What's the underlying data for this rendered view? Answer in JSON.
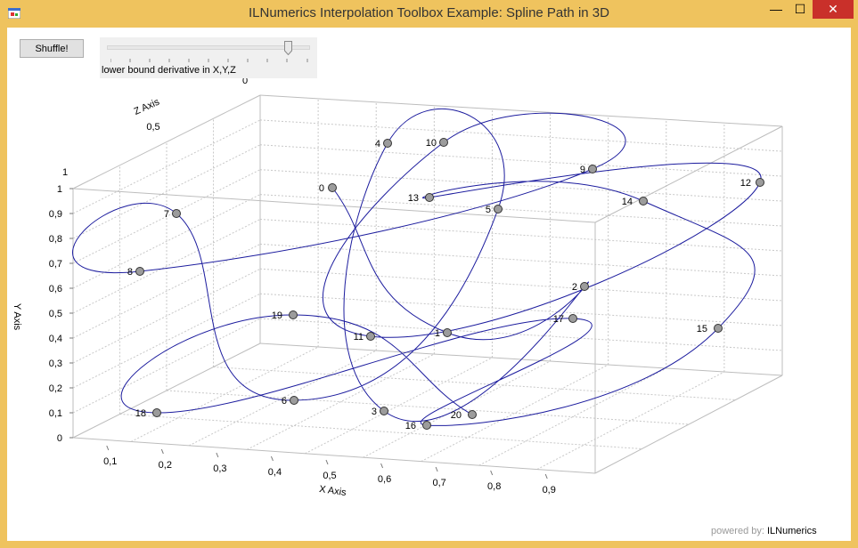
{
  "window": {
    "title": "ILNumerics Interpolation Toolbox Example: Spline Path in 3D",
    "minimize_glyph": "—",
    "maximize_glyph": "☐",
    "close_glyph": "✕"
  },
  "toolbar": {
    "shuffle_label": "Shuffle!",
    "slider_label": "lower bound derivative in X,Y,Z",
    "slider_value": 0.9
  },
  "footer": {
    "prefix": "powered by:",
    "brand": "ILNumerics"
  },
  "colors": {
    "curve": "#1c1c9e",
    "point": "#9c9c9c",
    "close": "#c9302a",
    "frame": "#efc35e"
  },
  "chart_data": {
    "type": "line",
    "xlabel": "X Axis",
    "ylabel": "Y Axis",
    "zlabel": "Z Axis",
    "x_ticks": [
      "0,1",
      "0,2",
      "0,3",
      "0,4",
      "0,5",
      "0,6",
      "0,7",
      "0,8",
      "0,9"
    ],
    "y_ticks": [
      "0",
      "0,1",
      "0,2",
      "0,3",
      "0,4",
      "0,5",
      "0,6",
      "0,7",
      "0,8",
      "0,9",
      "1"
    ],
    "z_ticks": [
      "1",
      "0,5",
      "0"
    ],
    "grid": true,
    "points": [
      {
        "label": "0"
      },
      {
        "label": "1"
      },
      {
        "label": "2"
      },
      {
        "label": "3"
      },
      {
        "label": "4"
      },
      {
        "label": "5"
      },
      {
        "label": "6"
      },
      {
        "label": "7"
      },
      {
        "label": "8"
      },
      {
        "label": "9"
      },
      {
        "label": "10"
      },
      {
        "label": "11"
      },
      {
        "label": "12"
      },
      {
        "label": "13"
      },
      {
        "label": "14"
      },
      {
        "label": "15"
      },
      {
        "label": "16"
      },
      {
        "label": "17"
      },
      {
        "label": "18"
      },
      {
        "label": "19"
      },
      {
        "label": "20"
      }
    ]
  }
}
